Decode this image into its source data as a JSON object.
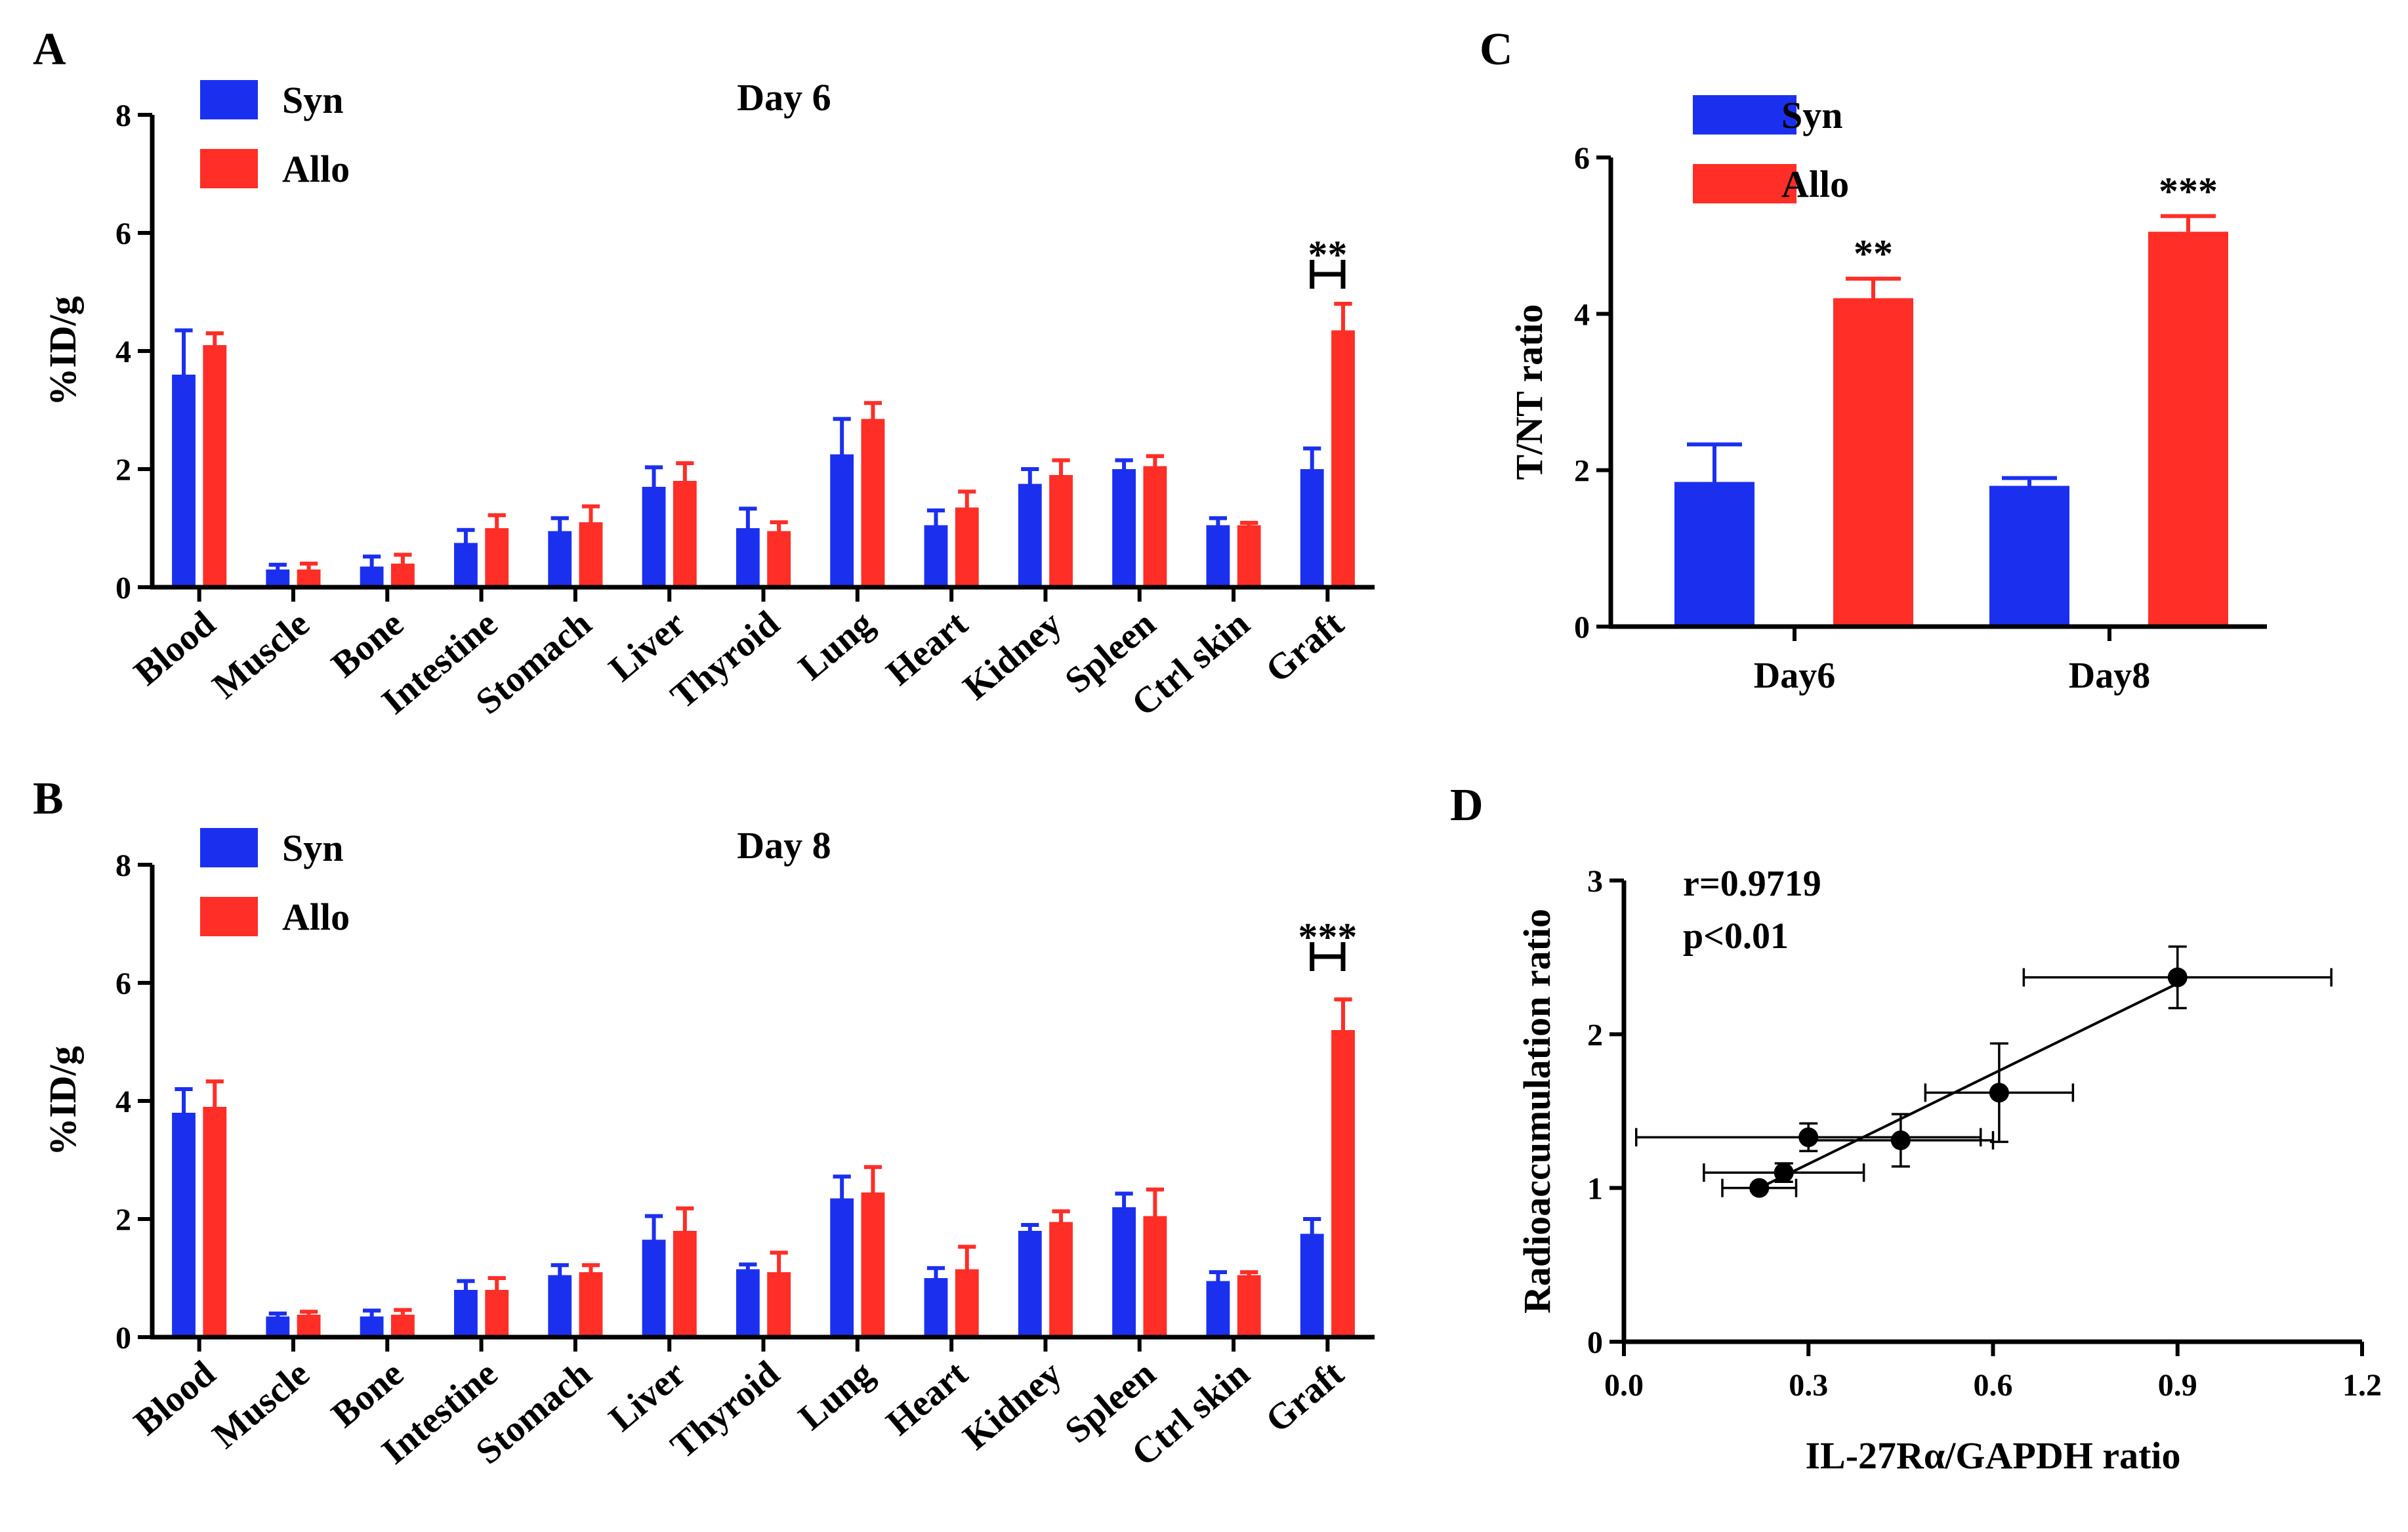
{
  "colors": {
    "syn": "#1b30ee",
    "allo": "#ff2e27",
    "axis": "#000000"
  },
  "chart_data": [
    {
      "id": "A",
      "panel_label": "A",
      "type": "bar",
      "title": "Day 6",
      "ylabel": "%ID/g",
      "xlabel": "",
      "ylim": [
        0,
        8
      ],
      "yticks": [
        "0",
        "2",
        "4",
        "6",
        "8"
      ],
      "legend": [
        "Syn",
        "Allo"
      ],
      "legend_position": "top-left",
      "categories": [
        "Blood",
        "Muscle",
        "Bone",
        "Intestine",
        "Stomach",
        "Liver",
        "Thyroid",
        "Lung",
        "Heart",
        "Kidney",
        "Spleen",
        "Ctrl skin",
        "Graft"
      ],
      "series": [
        {
          "name": "Syn",
          "values": [
            3.6,
            0.3,
            0.35,
            0.75,
            0.95,
            1.7,
            1.0,
            2.25,
            1.05,
            1.75,
            2.0,
            1.05,
            2.0
          ],
          "errors": [
            0.75,
            0.08,
            0.17,
            0.22,
            0.22,
            0.33,
            0.33,
            0.6,
            0.25,
            0.25,
            0.15,
            0.12,
            0.35
          ]
        },
        {
          "name": "Allo",
          "values": [
            4.1,
            0.3,
            0.4,
            1.0,
            1.1,
            1.8,
            0.95,
            2.85,
            1.35,
            1.9,
            2.05,
            1.05,
            4.35
          ],
          "errors": [
            0.2,
            0.1,
            0.15,
            0.22,
            0.27,
            0.3,
            0.15,
            0.27,
            0.27,
            0.25,
            0.17,
            0.04,
            0.45
          ]
        }
      ],
      "significance": [
        {
          "category": "Graft",
          "label": "**"
        }
      ]
    },
    {
      "id": "B",
      "panel_label": "B",
      "type": "bar",
      "title": "Day 8",
      "ylabel": "%ID/g",
      "xlabel": "",
      "ylim": [
        0,
        8
      ],
      "yticks": [
        "0",
        "2",
        "4",
        "6",
        "8"
      ],
      "legend": [
        "Syn",
        "Allo"
      ],
      "legend_position": "top-left",
      "categories": [
        "Blood",
        "Muscle",
        "Bone",
        "Intestine",
        "Stomach",
        "Liver",
        "Thyroid",
        "Lung",
        "Heart",
        "Kidney",
        "Spleen",
        "Ctrl skin",
        "Graft"
      ],
      "series": [
        {
          "name": "Syn",
          "values": [
            3.8,
            0.35,
            0.35,
            0.8,
            1.05,
            1.65,
            1.15,
            2.35,
            1.0,
            1.8,
            2.2,
            0.95,
            1.75
          ],
          "errors": [
            0.4,
            0.05,
            0.1,
            0.15,
            0.17,
            0.4,
            0.08,
            0.37,
            0.17,
            0.1,
            0.23,
            0.15,
            0.25
          ]
        },
        {
          "name": "Allo",
          "values": [
            3.9,
            0.38,
            0.38,
            0.8,
            1.1,
            1.8,
            1.1,
            2.45,
            1.15,
            1.95,
            2.05,
            1.05,
            5.2
          ],
          "errors": [
            0.43,
            0.05,
            0.08,
            0.2,
            0.12,
            0.38,
            0.33,
            0.43,
            0.38,
            0.18,
            0.45,
            0.05,
            0.52
          ]
        }
      ],
      "significance": [
        {
          "category": "Graft",
          "label": "***"
        }
      ]
    },
    {
      "id": "C",
      "panel_label": "C",
      "type": "bar",
      "title": "",
      "ylabel": "T/NT ratio",
      "xlabel": "",
      "ylim": [
        0,
        6
      ],
      "yticks": [
        "0",
        "2",
        "4",
        "6"
      ],
      "legend": [
        "Syn",
        "Allo"
      ],
      "legend_position": "top-left",
      "categories": [
        "Day6",
        "Day8"
      ],
      "series": [
        {
          "name": "Syn",
          "values": [
            1.85,
            1.8
          ],
          "errors": [
            0.48,
            0.1
          ]
        },
        {
          "name": "Allo",
          "values": [
            4.2,
            5.05
          ],
          "errors": [
            0.25,
            0.2
          ]
        }
      ],
      "significance": [
        {
          "category": "Day6",
          "series": "Allo",
          "label": "**"
        },
        {
          "category": "Day8",
          "series": "Allo",
          "label": "***"
        }
      ]
    },
    {
      "id": "D",
      "panel_label": "D",
      "type": "scatter",
      "title": "",
      "xlabel": "IL-27Rα/GAPDH ratio",
      "ylabel": "Radioaccumulation ratio",
      "xlim": [
        0.0,
        1.2
      ],
      "ylim": [
        0,
        3
      ],
      "xticks": [
        "0.0",
        "0.3",
        "0.6",
        "0.9",
        "1.2"
      ],
      "yticks": [
        "0",
        "1",
        "2",
        "3"
      ],
      "annotations": [
        "r=0.9719",
        "p<0.01"
      ],
      "points": [
        {
          "x": 0.22,
          "y": 1.0,
          "xerr": 0.06,
          "yerr": 0.02
        },
        {
          "x": 0.26,
          "y": 1.1,
          "xerr": 0.13,
          "yerr": 0.06
        },
        {
          "x": 0.3,
          "y": 1.33,
          "xerr": 0.28,
          "yerr": 0.09
        },
        {
          "x": 0.45,
          "y": 1.31,
          "xerr": 0.15,
          "yerr": 0.17
        },
        {
          "x": 0.61,
          "y": 1.62,
          "xerr": 0.12,
          "yerr": 0.32
        },
        {
          "x": 0.9,
          "y": 2.37,
          "xerr": 0.25,
          "yerr": 0.2
        }
      ],
      "fit_line": {
        "x": [
          0.22,
          0.9
        ],
        "y": [
          1.0,
          2.33
        ]
      }
    }
  ]
}
